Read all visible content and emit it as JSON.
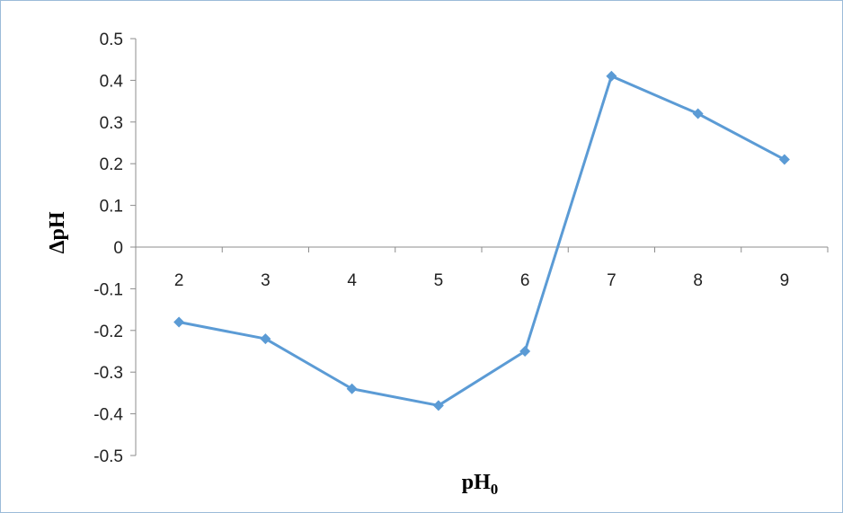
{
  "chart_data": {
    "type": "line",
    "title": "",
    "xlabel": "pH",
    "xlabel_sub": "0",
    "ylabel": "ΔpH",
    "ylim": [
      -0.5,
      0.5
    ],
    "y_ticks": [
      0.5,
      0.4,
      0.3,
      0.2,
      0.1,
      0,
      -0.1,
      -0.2,
      -0.3,
      -0.4,
      -0.5
    ],
    "y_tick_labels": [
      "0.5",
      "0.4",
      "0.3",
      "0.2",
      "0.1",
      "0",
      "-0.1",
      "-0.2",
      "-0.3",
      "-0.4",
      "-0.5"
    ],
    "categories": [
      "2",
      "3",
      "4",
      "5",
      "6",
      "7",
      "8",
      "9"
    ],
    "x": [
      2,
      3,
      4,
      5,
      6,
      7,
      8,
      9
    ],
    "series": [
      {
        "values": [
          -0.18,
          -0.22,
          -0.34,
          -0.38,
          -0.25,
          0.41,
          0.32,
          0.21
        ],
        "color": "#5b9bd5",
        "marker": "diamond"
      }
    ],
    "grid": false,
    "legend": "none",
    "axis_color": "#8c8c8c"
  }
}
